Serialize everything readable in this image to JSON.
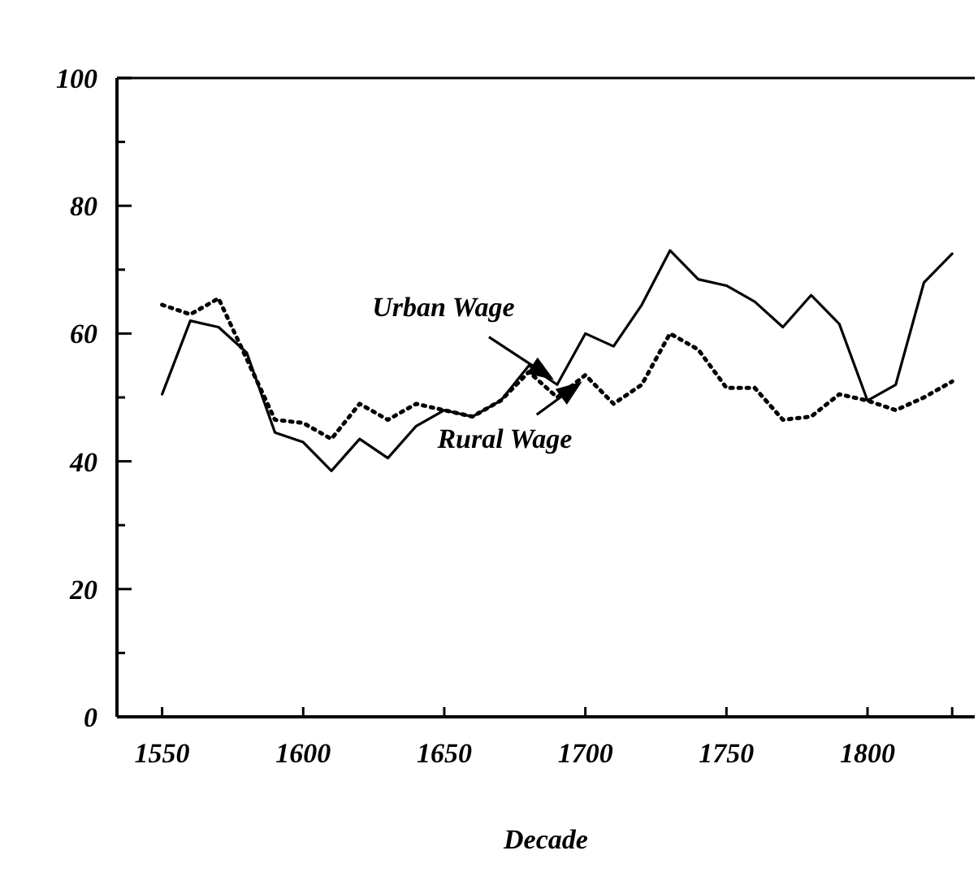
{
  "chart_data": {
    "type": "line",
    "xlabel": "Decade",
    "x": [
      1550,
      1560,
      1570,
      1580,
      1590,
      1600,
      1610,
      1620,
      1630,
      1640,
      1650,
      1660,
      1670,
      1680,
      1690,
      1700,
      1710,
      1720,
      1730,
      1740,
      1750,
      1760,
      1770,
      1780,
      1790,
      1800,
      1810,
      1820,
      1830
    ],
    "series": [
      {
        "name": "Urban Wage",
        "color": "#000000",
        "line_style": "solid",
        "values": [
          50.5,
          62,
          61,
          57,
          44.5,
          43,
          38.5,
          43.5,
          40.5,
          45.5,
          48,
          47,
          49.5,
          55,
          52,
          60,
          58,
          64.5,
          73,
          68.5,
          67.5,
          65,
          61,
          66,
          61.5,
          49.5,
          52,
          68,
          72.5
        ]
      },
      {
        "name": "Rural Wage",
        "color": "#000000",
        "line_style": "dotted",
        "values": [
          64.5,
          63,
          65.5,
          56,
          46.5,
          46,
          43.5,
          49,
          46.5,
          49,
          48,
          47,
          49.5,
          54,
          50,
          53.5,
          49,
          52,
          60,
          57.5,
          51.5,
          51.5,
          46.5,
          47,
          50.5,
          49.5,
          48,
          50,
          52.5
        ]
      }
    ],
    "xlim": [
      1534,
      1838
    ],
    "ylim": [
      0,
      100
    ],
    "xticks": [
      1550,
      1600,
      1650,
      1700,
      1750,
      1800,
      {
        "value": 1830,
        "label": null
      }
    ],
    "yticks": [
      0,
      {
        "value": 10,
        "label": null
      },
      20,
      {
        "value": 30,
        "label": null
      },
      40,
      {
        "value": 50,
        "label": null
      },
      60,
      {
        "value": 70,
        "label": null
      },
      80,
      {
        "value": 90,
        "label": null
      },
      100
    ],
    "grid": false,
    "legend": false,
    "marker": "none"
  }
}
